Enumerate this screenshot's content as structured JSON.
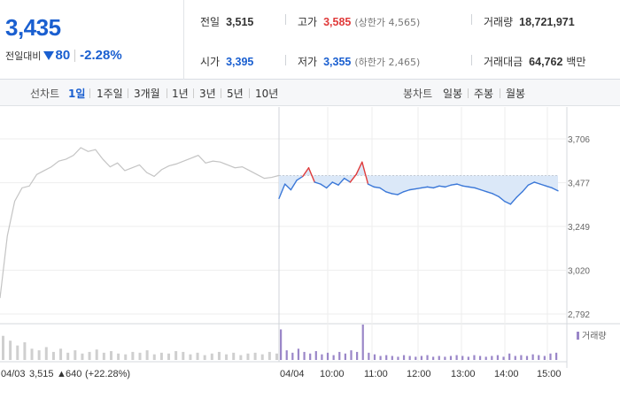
{
  "quote": {
    "price": "3,435",
    "change_label": "전일대비",
    "change_amount": "80",
    "change_direction": "down",
    "change_percent": "-2.28%",
    "prev_close_label": "전일",
    "prev_close": "3,515",
    "open_label": "시가",
    "open": "3,395",
    "high_label": "고가",
    "high": "3,585",
    "upper_limit_note": "(상한가 4,565)",
    "low_label": "저가",
    "low": "3,355",
    "lower_limit_note": "(하한가 2,465)",
    "volume_label": "거래량",
    "volume": "18,721,971",
    "turnover_label": "거래대금",
    "turnover": "64,762",
    "turnover_unit": "백만"
  },
  "period_bar": {
    "line_label": "선차트",
    "line_periods": [
      "1일",
      "1주일",
      "3개월",
      "1년",
      "3년",
      "5년",
      "10년"
    ],
    "active_period": "1일",
    "candle_label": "봉차트",
    "candle_periods": [
      "일봉",
      "주봉",
      "월봉"
    ]
  },
  "colors": {
    "rise": "#e03a3a",
    "fall": "#1a5fd0",
    "today_line": "#3b78d8",
    "prev_line": "#c4c4c4",
    "area_fill": "#dbe8f8",
    "volume_prev": "#cfcfcf",
    "volume_today": "#9a86c8"
  },
  "chart_data": {
    "type": "line",
    "y_ticks": [
      "3,706",
      "3,477",
      "3,249",
      "3,020",
      "2,792"
    ],
    "y_tick_values": [
      3706,
      3477,
      3249,
      3020,
      2792
    ],
    "ylim": [
      2792,
      3706
    ],
    "x_tick_labels": [
      "04/03",
      "04/04",
      "10:00",
      "11:00",
      "12:00",
      "13:00",
      "14:00",
      "15:00"
    ],
    "reference_price": 3515,
    "prev_day": {
      "date": "04/03",
      "close": 3515,
      "change": "640",
      "change_percent": "(+22.28%)",
      "series": [
        2875,
        3200,
        3380,
        3450,
        3460,
        3520,
        3540,
        3560,
        3590,
        3600,
        3620,
        3660,
        3640,
        3650,
        3600,
        3560,
        3580,
        3540,
        3555,
        3570,
        3530,
        3510,
        3545,
        3565,
        3575,
        3590,
        3605,
        3620,
        3580,
        3590,
        3585,
        3570,
        3555,
        3560,
        3540,
        3520,
        3500,
        3505,
        3515
      ]
    },
    "today": {
      "date": "04/04",
      "open": 3395,
      "high": 3585,
      "low": 3355,
      "close": 3435,
      "series": [
        3395,
        3470,
        3440,
        3490,
        3510,
        3555,
        3480,
        3470,
        3450,
        3480,
        3465,
        3500,
        3480,
        3520,
        3585,
        3470,
        3455,
        3450,
        3430,
        3420,
        3415,
        3430,
        3440,
        3445,
        3450,
        3455,
        3450,
        3460,
        3455,
        3465,
        3470,
        3460,
        3455,
        3450,
        3440,
        3430,
        3420,
        3405,
        3380,
        3365,
        3400,
        3430,
        3465,
        3480,
        3470,
        3460,
        3450,
        3435
      ]
    },
    "volume": {
      "label": "거래량",
      "prev_day": [
        30,
        24,
        18,
        22,
        14,
        12,
        16,
        10,
        14,
        9,
        12,
        8,
        10,
        13,
        9,
        11,
        8,
        7,
        10,
        9,
        12,
        7,
        9,
        8,
        11,
        10,
        7,
        9,
        6,
        8,
        10,
        7,
        9,
        6,
        8,
        9,
        7,
        10,
        8
      ],
      "today": [
        38,
        12,
        9,
        14,
        10,
        8,
        11,
        7,
        9,
        6,
        10,
        8,
        12,
        10,
        44,
        9,
        7,
        5,
        6,
        5,
        4,
        6,
        5,
        4,
        5,
        6,
        4,
        5,
        4,
        5,
        6,
        5,
        4,
        6,
        5,
        4,
        5,
        6,
        4,
        8,
        5,
        6,
        5,
        7,
        6,
        5,
        8,
        9
      ]
    }
  }
}
